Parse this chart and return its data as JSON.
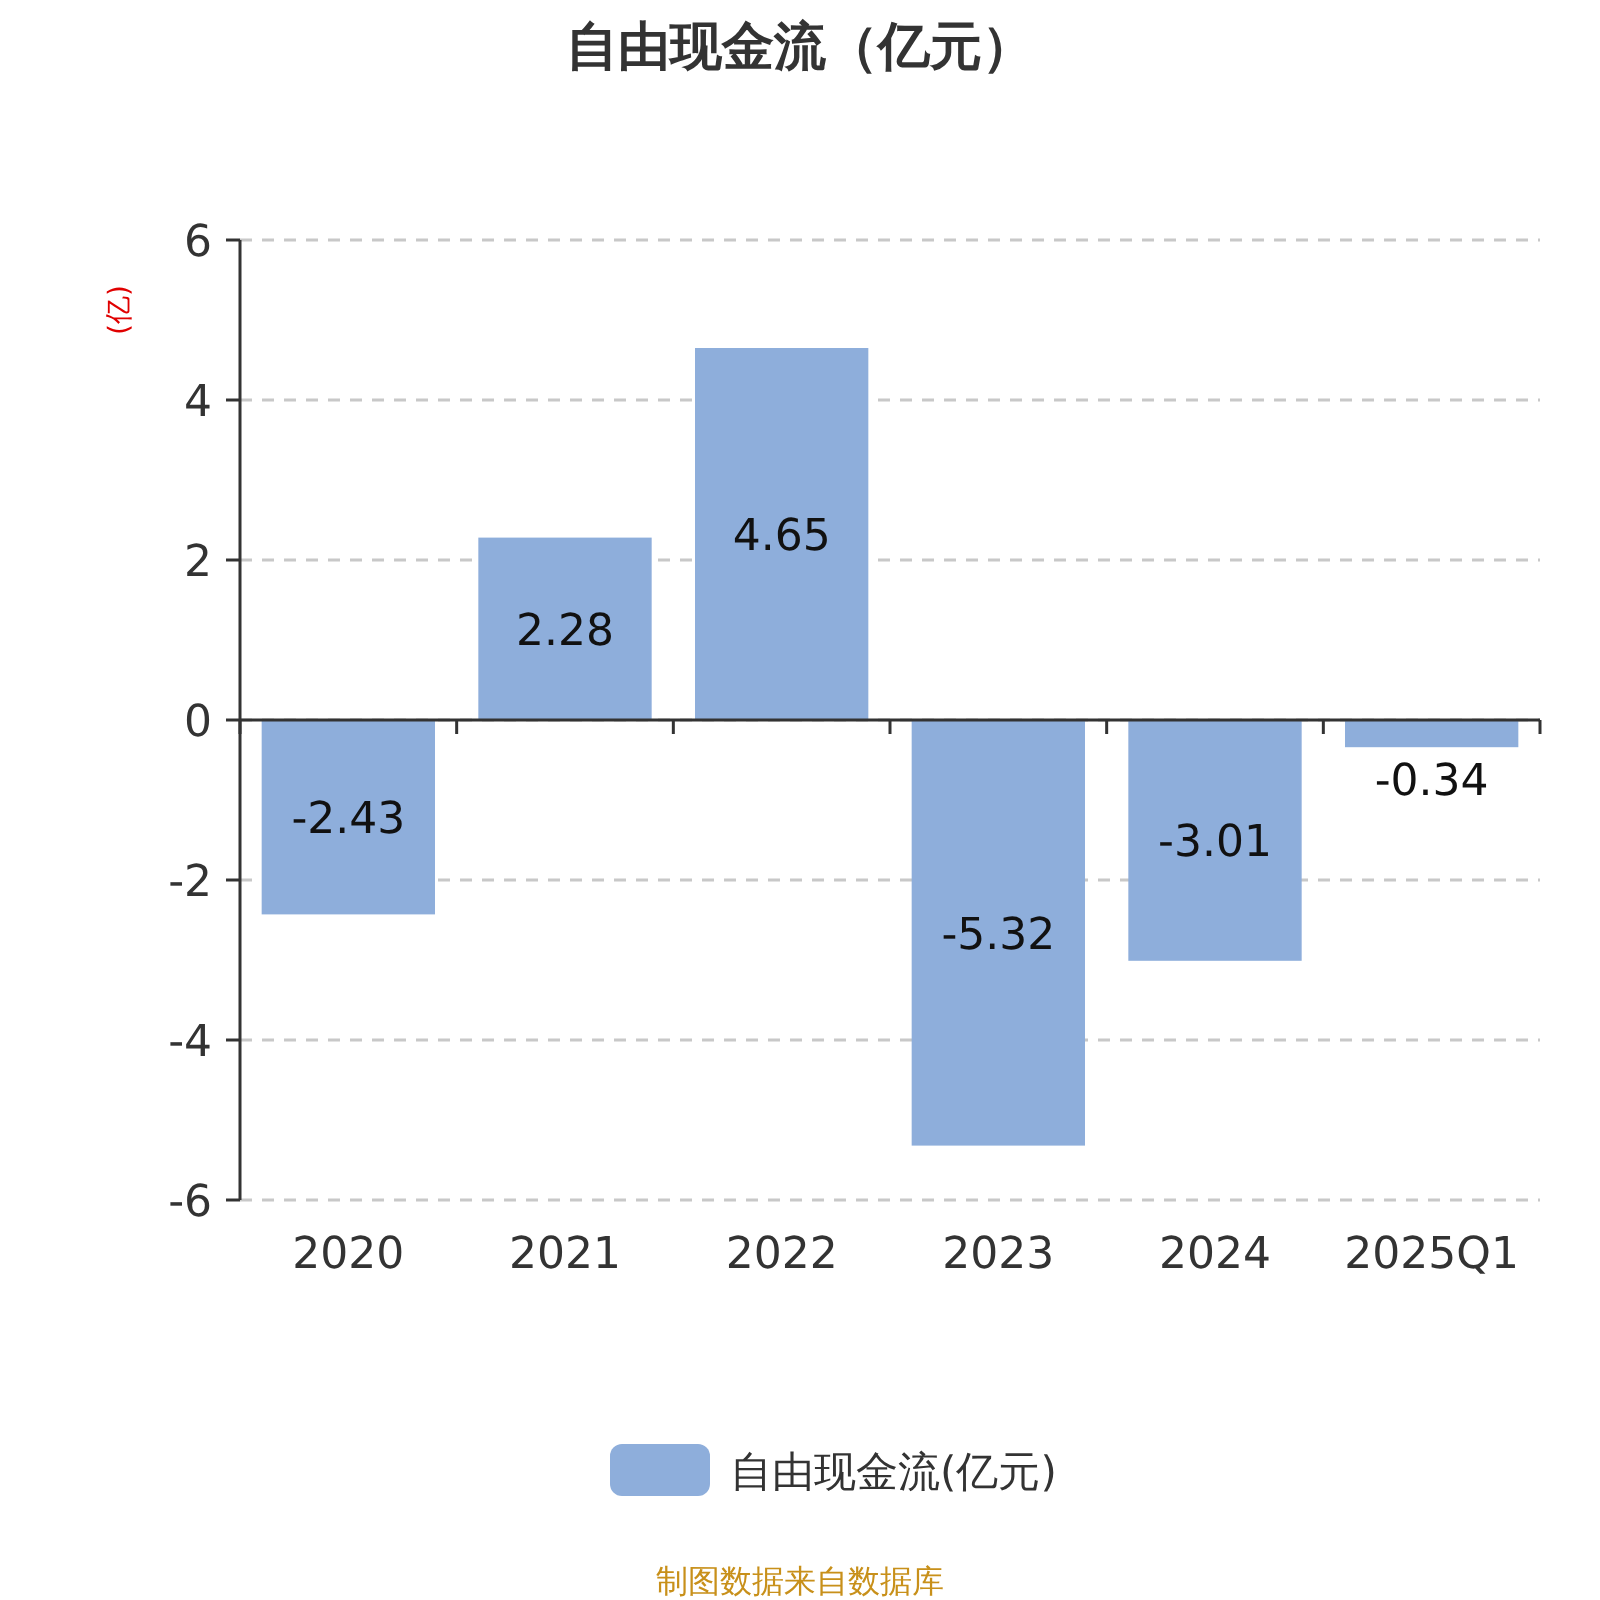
{
  "chart_data": {
    "type": "bar",
    "title": "自由现金流（亿元）",
    "ylabel": "(亿)",
    "categories": [
      "2020",
      "2021",
      "2022",
      "2023",
      "2024",
      "2025Q1"
    ],
    "series": [
      {
        "name": "自由现金流(亿元)",
        "color": "#8eaedb",
        "values": [
          -2.43,
          2.28,
          4.65,
          -5.32,
          -3.01,
          -0.34
        ]
      }
    ],
    "ylim": [
      -6,
      6
    ],
    "yticks": [
      -6,
      -4,
      -2,
      0,
      2,
      4,
      6
    ],
    "grid": "y",
    "legend": "bottom",
    "data_labels": true,
    "annotations": [
      "制图数据来自数据库"
    ]
  }
}
